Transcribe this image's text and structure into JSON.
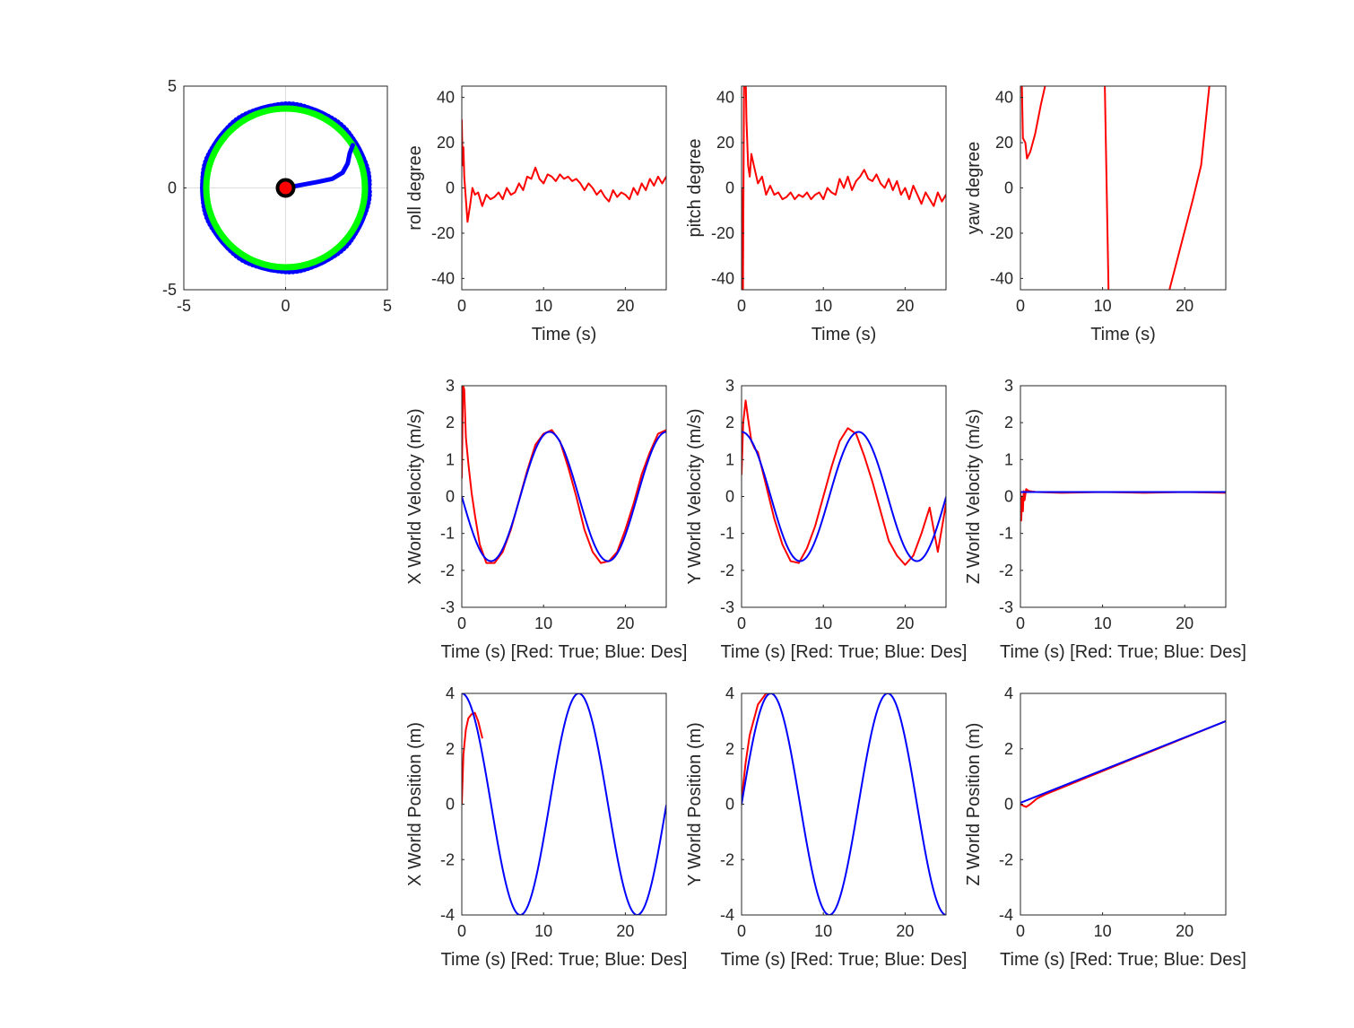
{
  "chart_data": [
    {
      "id": "traj",
      "type": "scatter",
      "xlim": [
        -5,
        5
      ],
      "ylim": [
        -5,
        5
      ],
      "xticks": [
        -5,
        0,
        5
      ],
      "yticks": [
        -5,
        0,
        5
      ],
      "grid": true,
      "xlabel": "",
      "ylabel": "",
      "series": [
        {
          "kind": "circle",
          "center": [
            0,
            0
          ],
          "radius": 4.05,
          "color": "#0000ff",
          "marker": "o"
        },
        {
          "kind": "circle",
          "center": [
            0,
            0
          ],
          "radius": 3.9,
          "color": "#00ff00",
          "marker": "*"
        },
        {
          "kind": "points",
          "color": "#0000ff",
          "x": [
            0,
            0.8,
            1.6,
            2.3,
            2.8,
            3.05,
            3.15,
            3.3
          ],
          "y": [
            0,
            0.15,
            0.3,
            0.45,
            0.75,
            1.2,
            1.7,
            2.1
          ]
        }
      ],
      "markers": [
        {
          "name": "start",
          "x": 0,
          "y": 0,
          "color": "#ff0000",
          "edge": "#000000"
        }
      ]
    },
    {
      "id": "roll",
      "type": "line",
      "xlim": [
        0,
        25
      ],
      "ylim": [
        -45,
        45
      ],
      "xticks": [
        0,
        10,
        20
      ],
      "yticks": [
        -40,
        -20,
        0,
        20,
        40
      ],
      "xlabel": "Time (s)",
      "ylabel": "roll degree",
      "series": [
        {
          "color": "#ff0000",
          "x": [
            0,
            0.1,
            0.2,
            0.3,
            0.5,
            0.7,
            1,
            1.3,
            1.6,
            2,
            2.5,
            3,
            3.5,
            4,
            4.5,
            5,
            5.5,
            6,
            6.5,
            7,
            7.5,
            8,
            8.5,
            9,
            9.5,
            10,
            10.5,
            11,
            11.5,
            12,
            12.5,
            13,
            13.5,
            14,
            14.5,
            15,
            15.5,
            16,
            16.5,
            17,
            17.5,
            18,
            18.5,
            19,
            19.5,
            20,
            20.5,
            21,
            21.5,
            22,
            22.5,
            23,
            23.5,
            24,
            24.5,
            25
          ],
          "y": [
            30,
            10,
            18,
            5,
            -5,
            -15,
            -8,
            0,
            -3,
            -2,
            -8,
            -3,
            -5,
            -4,
            -2,
            -5,
            0,
            -3,
            -2,
            2,
            -1,
            5,
            4,
            9,
            4,
            2,
            6,
            5,
            3,
            6,
            4,
            5,
            3,
            4,
            2,
            -1,
            2,
            0,
            -3,
            -1,
            -4,
            -6,
            -1,
            -4,
            -2,
            -3,
            -5,
            0,
            -3,
            2,
            -1,
            4,
            1,
            5,
            2,
            5
          ]
        }
      ]
    },
    {
      "id": "pitch",
      "type": "line",
      "xlim": [
        0,
        25
      ],
      "ylim": [
        -45,
        45
      ],
      "xticks": [
        0,
        10,
        20
      ],
      "yticks": [
        -40,
        -20,
        0,
        20,
        40
      ],
      "xlabel": "Time (s)",
      "ylabel": "pitch degree",
      "series": [
        {
          "color": "#ff0000",
          "x": [
            0,
            0.15,
            0.3,
            0.45,
            0.6,
            0.8,
            1,
            1.2,
            1.5,
            2,
            2.5,
            3,
            3.5,
            4,
            4.5,
            5,
            5.5,
            6,
            6.5,
            7,
            7.5,
            8,
            8.5,
            9,
            9.5,
            10,
            10.5,
            11,
            11.5,
            12,
            12.5,
            13,
            13.5,
            14,
            14.5,
            15,
            15.5,
            16,
            16.5,
            17,
            17.5,
            18,
            18.5,
            19,
            19.5,
            20,
            20.5,
            21,
            21.5,
            22,
            22.5,
            23,
            23.5,
            24,
            24.5,
            25
          ],
          "y": [
            0,
            -60,
            45,
            60,
            30,
            10,
            5,
            15,
            10,
            2,
            5,
            -3,
            1,
            -3,
            -2,
            -5,
            -4,
            -2,
            -5,
            -3,
            -4,
            -2,
            -5,
            -3,
            -2,
            -5,
            0,
            -2,
            -3,
            4,
            0,
            5,
            -1,
            3,
            5,
            8,
            4,
            3,
            6,
            2,
            0,
            4,
            -1,
            3,
            -3,
            0,
            -5,
            1,
            -3,
            -7,
            -2,
            -5,
            -8,
            -2,
            -6,
            -3
          ]
        }
      ]
    },
    {
      "id": "yaw",
      "type": "line",
      "xlim": [
        0,
        25
      ],
      "ylim": [
        -45,
        45
      ],
      "xticks": [
        0,
        10,
        20
      ],
      "yticks": [
        -40,
        -20,
        0,
        20,
        40
      ],
      "xlabel": "Time (s)",
      "ylabel": "yaw degree",
      "series": [
        {
          "color": "#ff0000",
          "x": [
            0.1,
            0.3,
            0.6,
            0.8,
            1.2,
            1.8,
            2.5,
            3.0,
            10.2,
            10.4,
            10.6,
            10.8,
            18.0,
            19.0,
            20.0,
            21.0,
            22.0,
            23.0
          ],
          "y": [
            60,
            22,
            20,
            13,
            16,
            24,
            37,
            45,
            60,
            20,
            -20,
            -60,
            -47,
            -33,
            -19,
            -5,
            10,
            45
          ],
          "breaks": [
            8
          ]
        }
      ]
    },
    {
      "id": "xvel",
      "type": "line",
      "xlim": [
        0,
        25
      ],
      "ylim": [
        -3,
        3
      ],
      "xticks": [
        0,
        10,
        20
      ],
      "yticks": [
        -3,
        -2,
        -1,
        0,
        1,
        2,
        3
      ],
      "xlabel": "Time (s) [Red: True; Blue: Des]",
      "ylabel": "X World Velocity (m/s)",
      "series": [
        {
          "color": "#ff0000",
          "x": [
            0,
            0.15,
            0.3,
            0.5,
            0.8,
            1.2,
            1.6,
            2.2,
            3,
            4,
            5,
            6,
            7,
            8,
            9,
            10,
            11,
            12,
            13,
            14,
            15,
            16,
            17,
            18,
            19,
            20,
            21,
            22,
            23,
            24,
            25
          ],
          "y": [
            0.5,
            3,
            2.9,
            1.6,
            0.9,
            0.1,
            -0.5,
            -1.3,
            -1.8,
            -1.8,
            -1.5,
            -0.9,
            -0.1,
            0.7,
            1.4,
            1.7,
            1.8,
            1.5,
            0.8,
            0.0,
            -0.9,
            -1.5,
            -1.8,
            -1.75,
            -1.5,
            -0.9,
            -0.2,
            0.6,
            1.2,
            1.7,
            1.8
          ]
        },
        {
          "color": "#0000ff",
          "fn": "-1.75*sin(2*pi*t/14.3)"
        }
      ]
    },
    {
      "id": "yvel",
      "type": "line",
      "xlim": [
        0,
        25
      ],
      "ylim": [
        -3,
        3
      ],
      "xticks": [
        0,
        10,
        20
      ],
      "yticks": [
        -3,
        -2,
        -1,
        0,
        1,
        2,
        3
      ],
      "xlabel": "Time (s) [Red: True; Blue: Des]",
      "ylabel": "Y World Velocity (m/s)",
      "series": [
        {
          "color": "#ff0000",
          "x": [
            0,
            0.2,
            0.5,
            0.8,
            1.2,
            1.6,
            2,
            3,
            4,
            5,
            6,
            7,
            8,
            9,
            10,
            11,
            12,
            13,
            14,
            15,
            16,
            17,
            18,
            19,
            20,
            21,
            22,
            23,
            24,
            25
          ],
          "y": [
            0.6,
            2.0,
            2.6,
            2.1,
            1.5,
            1.3,
            1.2,
            0.3,
            -0.6,
            -1.3,
            -1.75,
            -1.8,
            -1.4,
            -0.8,
            0.0,
            0.8,
            1.5,
            1.85,
            1.7,
            1.1,
            0.4,
            -0.4,
            -1.2,
            -1.6,
            -1.85,
            -1.6,
            -1.0,
            -0.3,
            -1.5,
            -0.2
          ]
        },
        {
          "color": "#0000ff",
          "fn": "1.75*cos(2*pi*t/14.3)"
        }
      ]
    },
    {
      "id": "zvel",
      "type": "line",
      "xlim": [
        0,
        25
      ],
      "ylim": [
        -3,
        3
      ],
      "xticks": [
        0,
        10,
        20
      ],
      "yticks": [
        -3,
        -2,
        -1,
        0,
        1,
        2,
        3
      ],
      "xlabel": "Time (s) [Red: True; Blue: Des]",
      "ylabel": "Z World Velocity (m/s)",
      "series": [
        {
          "color": "#ff0000",
          "x": [
            0,
            0.1,
            0.2,
            0.3,
            0.4,
            0.5,
            0.7,
            1,
            2,
            5,
            10,
            15,
            20,
            25
          ],
          "y": [
            0.1,
            -0.65,
            0.0,
            -0.4,
            0.15,
            -0.1,
            0.2,
            0.15,
            0.12,
            0.1,
            0.12,
            0.1,
            0.12,
            0.1
          ]
        },
        {
          "color": "#0000ff",
          "x": [
            0,
            25
          ],
          "y": [
            0.12,
            0.12
          ]
        }
      ]
    },
    {
      "id": "xpos",
      "type": "line",
      "xlim": [
        0,
        25
      ],
      "ylim": [
        -4,
        4
      ],
      "xticks": [
        0,
        10,
        20
      ],
      "yticks": [
        -4,
        -2,
        0,
        2,
        4
      ],
      "xlabel": "Time (s) [Red: True; Blue: Des]",
      "ylabel": "X World Position (m)",
      "series": [
        {
          "color": "#ff0000",
          "x": [
            0,
            0.2,
            0.5,
            0.8,
            1.2,
            1.6,
            2.0,
            2.5
          ],
          "y": [
            0,
            1.8,
            2.7,
            3.1,
            3.25,
            3.3,
            3.0,
            2.4
          ]
        },
        {
          "color": "#0000ff",
          "fn": "4*cos(2*pi*t/14.3)"
        }
      ]
    },
    {
      "id": "ypos",
      "type": "line",
      "xlim": [
        0,
        25
      ],
      "ylim": [
        -4,
        4
      ],
      "xticks": [
        0,
        10,
        20
      ],
      "yticks": [
        -4,
        -2,
        0,
        2,
        4
      ],
      "xlabel": "Time (s) [Red: True; Blue: Des]",
      "ylabel": "Y World Position (m)",
      "series": [
        {
          "color": "#ff0000",
          "x": [
            0,
            0.2,
            0.5,
            1,
            2,
            3,
            3.7
          ],
          "y": [
            0,
            0.7,
            1.5,
            2.5,
            3.6,
            4.0,
            4.0
          ]
        },
        {
          "color": "#0000ff",
          "fn": "4*sin(2*pi*t/14.3)"
        }
      ]
    },
    {
      "id": "zpos",
      "type": "line",
      "xlim": [
        0,
        25
      ],
      "ylim": [
        -4,
        4
      ],
      "xticks": [
        0,
        10,
        20
      ],
      "yticks": [
        -4,
        -2,
        0,
        2,
        4
      ],
      "xlabel": "Time (s) [Red: True; Blue: Des]",
      "ylabel": "Z World Position (m)",
      "series": [
        {
          "color": "#ff0000",
          "x": [
            0,
            0.3,
            0.7,
            1.2,
            2,
            3,
            25
          ],
          "y": [
            0,
            -0.05,
            -0.1,
            0.0,
            0.2,
            0.35,
            3.0
          ]
        },
        {
          "color": "#0000ff",
          "x": [
            0,
            25
          ],
          "y": [
            0.05,
            3.0
          ]
        }
      ]
    }
  ]
}
